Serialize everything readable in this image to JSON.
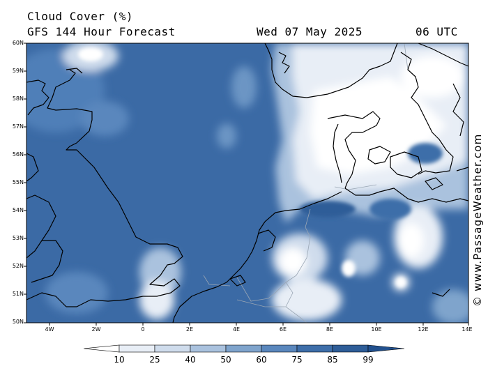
{
  "header": {
    "title": "Cloud Cover (%)",
    "model": "GFS 144 Hour Forecast",
    "date": "Wed 07 May 2025",
    "time": "06 UTC"
  },
  "credit": "© www.PassageWeather.com",
  "lat_labels": [
    "60N",
    "59N",
    "58N",
    "57N",
    "56N",
    "55N",
    "54N",
    "53N",
    "52N",
    "51N",
    "50N"
  ],
  "lon_labels": [
    "4W",
    "2W",
    "0",
    "2E",
    "4E",
    "6E",
    "8E",
    "10E",
    "12E",
    "14E"
  ],
  "colorbar": {
    "labels": [
      "10",
      "25",
      "40",
      "50",
      "60",
      "75",
      "85",
      "99"
    ],
    "colors": [
      "#ffffff",
      "#e8eef6",
      "#cfdcec",
      "#aac2de",
      "#7fa4cc",
      "#5a87bd",
      "#3e6ea9",
      "#2e5d98",
      "#21508e"
    ]
  },
  "map": {
    "lon_range": [
      -5,
      14
    ],
    "lat_range": [
      50,
      60
    ],
    "variable": "Cloud Cover (%)"
  }
}
